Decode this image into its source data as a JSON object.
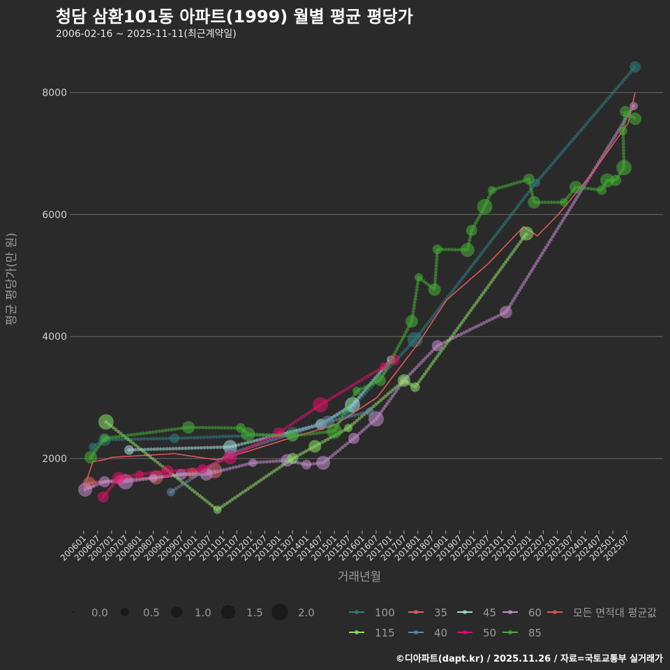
{
  "title": "청담 삼환101동 아파트(1999) 월별 평균 평당가",
  "subtitle": "2006-02-16 ~ 2025-11-11(최근계약일)",
  "footer": "©디아파트(dapt.kr) / 2025.11.26 / 자료=국토교통부 실거래가",
  "chart_data": {
    "type": "scatter",
    "xlabel": "거래년월",
    "ylabel": "평균 평당가(만 원)",
    "ylim": [
      900,
      8700
    ],
    "xlim": [
      2005.5,
      2026.3
    ],
    "y_ticks": [
      2000,
      4000,
      6000,
      8000
    ],
    "x_ticks": [
      "200601",
      "200607",
      "200701",
      "200707",
      "200801",
      "200807",
      "200901",
      "200907",
      "201001",
      "201007",
      "201101",
      "201107",
      "201201",
      "201207",
      "201301",
      "201307",
      "201401",
      "201407",
      "201501",
      "201507",
      "201601",
      "201607",
      "201701",
      "201707",
      "201801",
      "201807",
      "201901",
      "201907",
      "202001",
      "202007",
      "202101",
      "202107",
      "202201",
      "202207",
      "202301",
      "202307",
      "202401",
      "202407",
      "202501",
      "202507"
    ],
    "grid": true,
    "size_legend": {
      "values": [
        "0.0",
        "0.5",
        "1.0",
        "1.5",
        "2.0"
      ]
    },
    "series": [
      {
        "name": "100",
        "color": "#2e7f80",
        "points": [
          [
            2006.33,
            2190
          ],
          [
            2006.75,
            2310
          ],
          [
            2009.26,
            2330
          ],
          [
            2013.5,
            2400
          ],
          [
            2015.5,
            2770
          ],
          [
            2017.9,
            3950
          ],
          [
            2022.24,
            6520
          ],
          [
            2025.8,
            8420
          ]
        ]
      },
      {
        "name": "35",
        "color": "#e06666",
        "points": [
          [
            2006.2,
            1600
          ],
          [
            2007.3,
            1650
          ],
          [
            2008.6,
            1690
          ],
          [
            2009.9,
            1760
          ],
          [
            2010.7,
            1800
          ]
        ]
      },
      {
        "name": "45",
        "color": "#a8dede",
        "points": [
          [
            2007.63,
            2140
          ],
          [
            2011.26,
            2190
          ],
          [
            2014.52,
            2560
          ],
          [
            2015.65,
            2880
          ],
          [
            2017.03,
            3620
          ]
        ]
      },
      {
        "name": "60",
        "color": "#c98fd2",
        "points": [
          [
            2006.05,
            1490
          ],
          [
            2006.75,
            1620
          ],
          [
            2007.5,
            1620
          ],
          [
            2008.5,
            1680
          ],
          [
            2009.5,
            1740
          ],
          [
            2010.4,
            1740
          ],
          [
            2012.07,
            1930
          ],
          [
            2013.3,
            1970
          ],
          [
            2014.0,
            1900
          ],
          [
            2014.6,
            1930
          ],
          [
            2015.7,
            2330
          ],
          [
            2016.5,
            2650
          ],
          [
            2017.5,
            3280
          ],
          [
            2018.7,
            3850
          ],
          [
            2021.16,
            4400
          ],
          [
            2025.75,
            7780
          ]
        ]
      },
      {
        "name": "모든 면적대 평균값",
        "color": "#e05858",
        "line_only": true,
        "points": [
          [
            2006.0,
            1500
          ],
          [
            2006.33,
            1950
          ],
          [
            2006.75,
            1980
          ],
          [
            2007.0,
            2020
          ],
          [
            2009.26,
            2080
          ],
          [
            2010.76,
            1980
          ],
          [
            2011.76,
            2100
          ],
          [
            2013.52,
            2350
          ],
          [
            2015.02,
            2550
          ],
          [
            2016.53,
            3000
          ],
          [
            2018.03,
            3900
          ],
          [
            2019.03,
            4600
          ],
          [
            2020.54,
            5200
          ],
          [
            2021.79,
            5800
          ],
          [
            2022.29,
            5650
          ],
          [
            2023.04,
            6000
          ],
          [
            2024.3,
            6700
          ],
          [
            2025.55,
            7500
          ],
          [
            2025.8,
            8000
          ]
        ]
      },
      {
        "name": "115",
        "color": "#8ee06a",
        "points": [
          [
            2006.8,
            2600
          ],
          [
            2010.8,
            1160
          ],
          [
            2013.5,
            2000
          ],
          [
            2014.3,
            2200
          ],
          [
            2015.5,
            2500
          ],
          [
            2017.5,
            3280
          ],
          [
            2017.9,
            3170
          ],
          [
            2021.9,
            5690
          ]
        ]
      },
      {
        "name": "40",
        "color": "#6a86a8",
        "points": [
          [
            2009.13,
            1450
          ],
          [
            2011.26,
            2080
          ],
          [
            2014.77,
            2600
          ],
          [
            2016.27,
            2770
          ]
        ]
      },
      {
        "name": "50",
        "color": "#e0106a",
        "points": [
          [
            2006.7,
            1370
          ],
          [
            2007.25,
            1680
          ],
          [
            2008.0,
            1740
          ],
          [
            2009.0,
            1790
          ],
          [
            2010.26,
            1830
          ],
          [
            2011.26,
            2020
          ],
          [
            2013.0,
            2420
          ],
          [
            2014.5,
            2880
          ],
          [
            2016.78,
            3510
          ],
          [
            2017.15,
            3620
          ]
        ]
      },
      {
        "name": "85",
        "color": "#45b035",
        "points": [
          [
            2006.25,
            2020
          ],
          [
            2006.75,
            2330
          ],
          [
            2009.76,
            2510
          ],
          [
            2011.64,
            2500
          ],
          [
            2011.9,
            2400
          ],
          [
            2013.5,
            2370
          ],
          [
            2015.0,
            2450
          ],
          [
            2015.8,
            3110
          ],
          [
            2016.65,
            3280
          ],
          [
            2017.78,
            4250
          ],
          [
            2018.03,
            4970
          ],
          [
            2018.6,
            4770
          ],
          [
            2018.7,
            5430
          ],
          [
            2019.78,
            5420
          ],
          [
            2019.93,
            5740
          ],
          [
            2020.4,
            6130
          ],
          [
            2020.66,
            6400
          ],
          [
            2021.99,
            6580
          ],
          [
            2022.17,
            6200
          ],
          [
            2023.24,
            6200
          ],
          [
            2023.67,
            6450
          ],
          [
            2024.6,
            6400
          ],
          [
            2024.8,
            6560
          ],
          [
            2025.1,
            6560
          ],
          [
            2025.4,
            6770
          ],
          [
            2025.37,
            7370
          ],
          [
            2025.45,
            7690
          ],
          [
            2025.8,
            7570
          ]
        ]
      }
    ]
  }
}
